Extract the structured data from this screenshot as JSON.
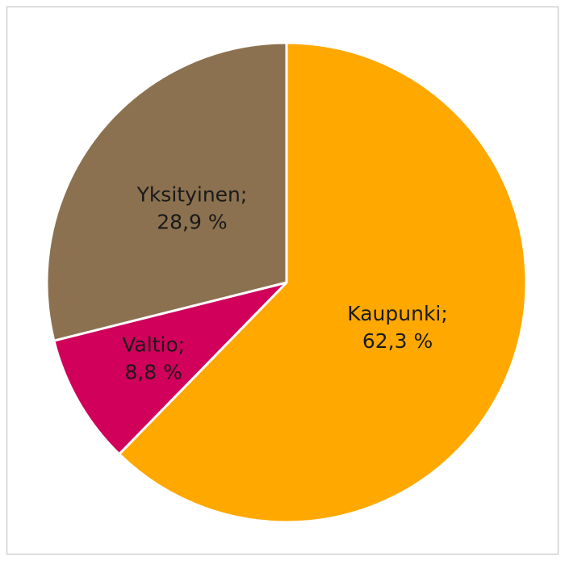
{
  "chart_data": {
    "type": "pie",
    "categories": [
      "Kaupunki;",
      "Valtio;",
      "Yksityinen;"
    ],
    "values": [
      62.3,
      8.8,
      28.9
    ],
    "value_labels": [
      "62,3 %",
      "8,8 %",
      "28,9 %"
    ],
    "colors": [
      "#FFA800",
      "#D1005A",
      "#8B714F"
    ]
  }
}
